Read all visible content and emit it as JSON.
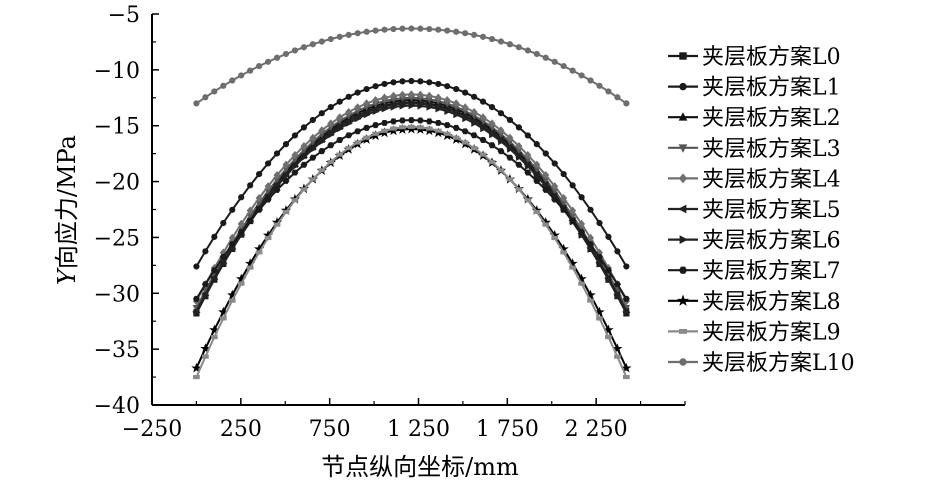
{
  "chart_data": {
    "type": "line",
    "xlabel": "节点纵向坐标/mm",
    "ylabel_italic": "Y",
    "ylabel_rest": "向应力/MPa",
    "xlim": [
      -250,
      2750
    ],
    "ylim": [
      -40,
      -5
    ],
    "xticks": [
      -250,
      250,
      750,
      1250,
      1750,
      2250
    ],
    "xtick_labels": [
      "−250",
      "250",
      "750",
      "1 250",
      "1 750",
      "2 250"
    ],
    "yticks": [
      -5,
      -10,
      -15,
      -20,
      -25,
      -30,
      -35,
      -40
    ],
    "ytick_labels": [
      "−5",
      "−10",
      "−15",
      "−20",
      "−25",
      "−30",
      "−35",
      "−40"
    ],
    "grid": false,
    "legend_position": "right",
    "x_range": [
      0,
      2420
    ],
    "series": [
      {
        "name": "夹层板方案L0",
        "edge": -31.8,
        "peak": -12.9,
        "color": "#1a1a1a",
        "marker": "square"
      },
      {
        "name": "夹层板方案L1",
        "edge": -27.6,
        "peak": -11.0,
        "color": "#1a1a1a",
        "marker": "circle"
      },
      {
        "name": "夹层板方案L2",
        "edge": -31.5,
        "peak": -12.7,
        "color": "#111111",
        "marker": "triangle"
      },
      {
        "name": "夹层板方案L3",
        "edge": -31.3,
        "peak": -12.5,
        "color": "#555555",
        "marker": "triangle-down"
      },
      {
        "name": "夹层板方案L4",
        "edge": -30.7,
        "peak": -12.2,
        "color": "#707070",
        "marker": "diamond"
      },
      {
        "name": "夹层板方案L5",
        "edge": -31.6,
        "peak": -13.0,
        "color": "#222222",
        "marker": "triangle-left"
      },
      {
        "name": "夹层板方案L6",
        "edge": -31.7,
        "peak": -13.2,
        "color": "#222222",
        "marker": "triangle-right"
      },
      {
        "name": "夹层板方案L7",
        "edge": -30.5,
        "peak": -14.5,
        "color": "#1a1a1a",
        "marker": "hexagon"
      },
      {
        "name": "夹层板方案L8",
        "edge": -36.7,
        "peak": -15.3,
        "color": "#000000",
        "marker": "star"
      },
      {
        "name": "夹层板方案L9",
        "edge": -37.5,
        "peak": -15.1,
        "color": "#8a8a8a",
        "marker": "dash"
      },
      {
        "name": "夹层板方案L10",
        "edge": -13.0,
        "peak": -6.3,
        "color": "#6e6e6e",
        "marker": "circle"
      }
    ]
  }
}
